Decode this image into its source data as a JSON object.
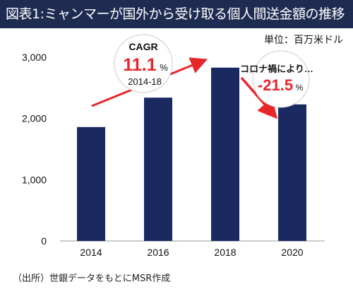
{
  "title": "図表1:ミャンマーが国外から受け取る個人間送金額の推移",
  "unit_label": "単位：百万米ドル",
  "source_note": "（出所）世銀データをもとにMSR作成",
  "colors": {
    "title_bg": "#1f2c52",
    "bar": "#1a2a60",
    "arrow": "#e8262a",
    "highlight": "#e8262a",
    "axis": "#999999"
  },
  "annotations": {
    "cagr": {
      "label": "CAGR",
      "value": "11.1",
      "unit": "%",
      "period": "2014-18"
    },
    "covid": {
      "label": "コロナ禍により…",
      "value": "-21.5",
      "unit": "%"
    }
  },
  "chart_data": {
    "type": "bar",
    "categories": [
      "2014",
      "2016",
      "2018",
      "2020"
    ],
    "values": [
      1860,
      2340,
      2830,
      2230
    ],
    "ylim": [
      0,
      3000
    ],
    "yticks": [
      0,
      1000,
      2000,
      3000
    ],
    "ytick_labels": [
      "0",
      "1,000",
      "2,000",
      "3,000"
    ],
    "xlabel": "",
    "ylabel": "",
    "grid": false
  }
}
